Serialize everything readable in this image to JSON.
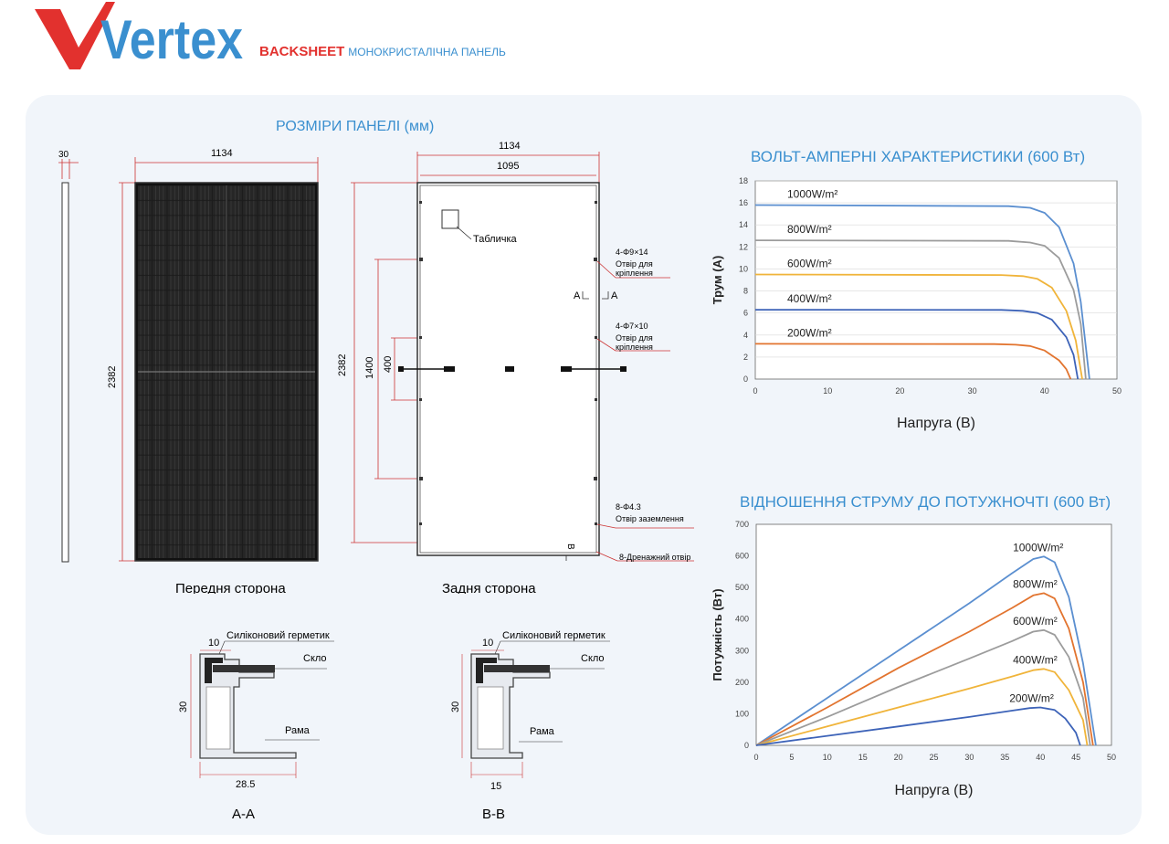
{
  "brand": {
    "logo_text": "Vertex",
    "backsheet": "BACKSHEET",
    "product_type": "МОНОКРИСТАЛІЧНА ПАНЕЛЬ"
  },
  "dimensions": {
    "title": "РОЗМІРИ ПАНЕЛІ (мм)",
    "side_thickness": "30",
    "front_width": "1134",
    "front_height": "2382",
    "front_caption": "Передня сторона",
    "back_width_outer": "1134",
    "back_width_inner": "1095",
    "back_height": "2382",
    "mount_spacing": "1400",
    "ground_spacing": "400",
    "nameplate": "Табличка",
    "hole1_spec": "4-Φ9×14",
    "hole1_desc_1": "Отвір для",
    "hole1_desc_2": "кріплення",
    "section_mark_a_left": "A",
    "section_mark_a_right": "A",
    "hole2_spec": "4-Φ7×10",
    "hole2_desc_1": "Отвір для",
    "hole2_desc_2": "кріплення",
    "ground_spec": "8-Φ4.3",
    "ground_desc": "Отвір заземлення",
    "section_mark_b": "B",
    "drain": "8-Дренажний отвір",
    "back_caption": "Задня сторона"
  },
  "sections": {
    "aa": {
      "sealant": "Силіконовий герметик",
      "glass": "Скло",
      "frame": "Рама",
      "top": "10",
      "height": "30",
      "bottom": "28.5",
      "label": "A-A"
    },
    "bb": {
      "sealant": "Силіконовий герметик",
      "glass": "Скло",
      "frame": "Рама",
      "top": "10",
      "height": "30",
      "bottom": "15",
      "label": "B-B"
    }
  },
  "colors": {
    "brand_blue": "#3a8fcf",
    "brand_red": "#e2312e",
    "panel_bg": "#f1f5fa",
    "cell": "#1a1a1a"
  },
  "chart_data": [
    {
      "type": "line",
      "title": "ВОЛЬТ-АМПЕРНІ ХАРАКТЕРИСТИКИ (600 Вт)",
      "xlabel": "Напруга (В)",
      "ylabel": "Трум (А)",
      "xlim": [
        0,
        50
      ],
      "ylim": [
        0,
        18
      ],
      "xticks": [
        0,
        10,
        20,
        30,
        40,
        50
      ],
      "yticks": [
        0,
        2,
        4,
        6,
        8,
        10,
        12,
        14,
        16,
        18
      ],
      "grid": true,
      "series": [
        {
          "name": "1000W/m²",
          "color": "#5b8fd0",
          "x": [
            0,
            35,
            38,
            40,
            42,
            44,
            45,
            46.2
          ],
          "y": [
            15.8,
            15.7,
            15.55,
            15.1,
            13.8,
            10.5,
            7.0,
            0
          ]
        },
        {
          "name": "800W/m²",
          "color": "#9c9c9c",
          "x": [
            0,
            35,
            38,
            40,
            42,
            44,
            45,
            45.7
          ],
          "y": [
            12.6,
            12.55,
            12.4,
            12.1,
            11.0,
            8.1,
            5.0,
            0
          ]
        },
        {
          "name": "600W/m²",
          "color": "#f0b43a",
          "x": [
            0,
            34,
            37,
            39,
            41,
            43,
            44.3,
            45.2
          ],
          "y": [
            9.5,
            9.45,
            9.35,
            9.1,
            8.3,
            6.2,
            3.5,
            0
          ]
        },
        {
          "name": "400W/m²",
          "color": "#3d63b8",
          "x": [
            0,
            34,
            37,
            39,
            41,
            43,
            44,
            44.6
          ],
          "y": [
            6.3,
            6.28,
            6.2,
            6.0,
            5.4,
            3.8,
            2.2,
            0
          ]
        },
        {
          "name": "200W/m²",
          "color": "#e2742f",
          "x": [
            0,
            33,
            36,
            38,
            40,
            42,
            43,
            43.6
          ],
          "y": [
            3.2,
            3.18,
            3.12,
            3.0,
            2.6,
            1.7,
            0.9,
            0
          ]
        }
      ]
    },
    {
      "type": "line",
      "title": "ВІДНОШЕННЯ СТРУМУ ДО ПОТУЖНОЧТІ (600 Вт)",
      "xlabel": "Напруга (В)",
      "ylabel": "Потужність (Вт)",
      "xlim": [
        0,
        50
      ],
      "ylim": [
        0,
        700
      ],
      "xticks": [
        0,
        5,
        10,
        15,
        20,
        25,
        30,
        35,
        40,
        45,
        50
      ],
      "yticks": [
        0,
        100,
        200,
        300,
        400,
        500,
        600,
        700
      ],
      "grid": false,
      "series": [
        {
          "name": "1000W/m²",
          "color": "#5b8fd0",
          "x": [
            0,
            10,
            20,
            30,
            36,
            39,
            40.5,
            42,
            44,
            46,
            47.8
          ],
          "y": [
            0,
            150,
            300,
            450,
            545,
            590,
            598,
            580,
            470,
            260,
            0
          ]
        },
        {
          "name": "800W/m²",
          "color": "#e2742f",
          "x": [
            0,
            10,
            20,
            30,
            36,
            39,
            40.5,
            42,
            44,
            46,
            47.4
          ],
          "y": [
            0,
            120,
            245,
            360,
            435,
            475,
            482,
            465,
            370,
            200,
            0
          ]
        },
        {
          "name": "600W/m²",
          "color": "#9c9c9c",
          "x": [
            0,
            10,
            20,
            30,
            36,
            39,
            40.5,
            42,
            44,
            46,
            47.0
          ],
          "y": [
            0,
            90,
            185,
            275,
            330,
            360,
            365,
            350,
            280,
            150,
            0
          ]
        },
        {
          "name": "400W/m²",
          "color": "#f0b43a",
          "x": [
            0,
            10,
            20,
            30,
            36,
            39,
            40.5,
            42,
            44,
            46,
            46.6
          ],
          "y": [
            0,
            60,
            120,
            180,
            218,
            238,
            242,
            232,
            175,
            80,
            0
          ]
        },
        {
          "name": "200W/m²",
          "color": "#3d63b8",
          "x": [
            0,
            10,
            20,
            30,
            36,
            38.5,
            40,
            42,
            43.5,
            45,
            45.6
          ],
          "y": [
            0,
            30,
            60,
            90,
            110,
            118,
            120,
            112,
            85,
            40,
            0
          ]
        }
      ]
    }
  ]
}
